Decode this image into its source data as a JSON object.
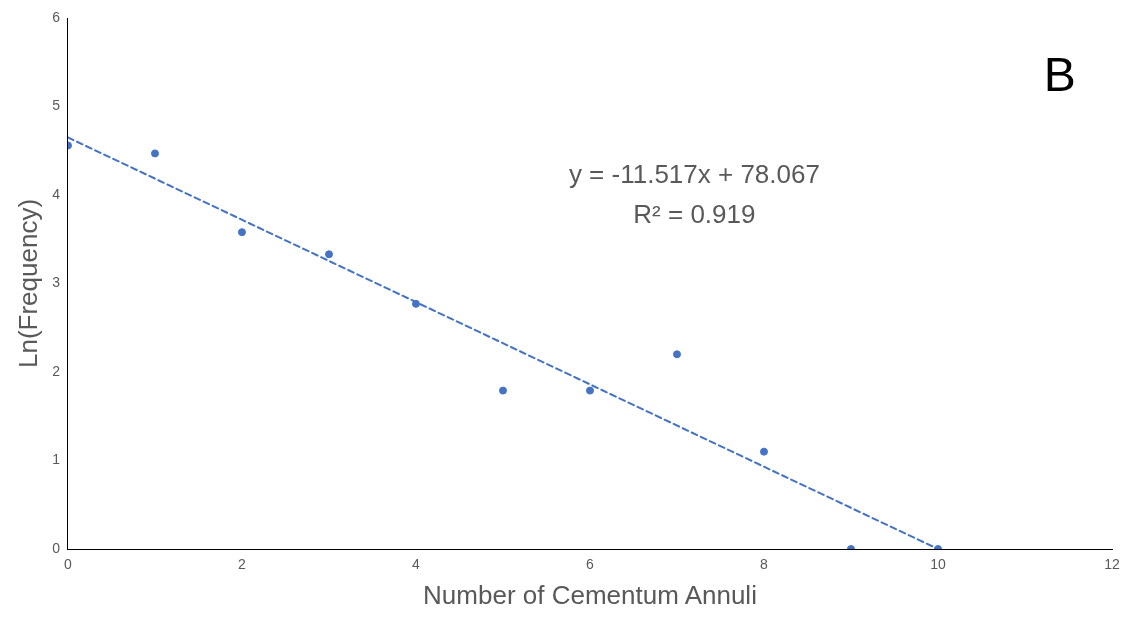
{
  "chart_data": {
    "type": "scatter",
    "xlabel": "Number of Cementum Annuli",
    "ylabel": "Ln(Frequency)",
    "xlim": [
      0,
      12
    ],
    "xticks": [
      0,
      2,
      4,
      6,
      8,
      10,
      12
    ],
    "ylim": [
      0,
      6
    ],
    "yticks": [
      0,
      1,
      2,
      3,
      4,
      5,
      6
    ],
    "grid": false,
    "legend": false,
    "marker": "circle",
    "annotations": [
      "B",
      "y = -11.517x + 78.067",
      "R² = 0.919"
    ],
    "series": [
      {
        "color": "#4472c4",
        "x": [
          0,
          1,
          2,
          3,
          4,
          5,
          6,
          7,
          8,
          9,
          10
        ],
        "values": [
          4.56,
          4.47,
          3.58,
          3.33,
          2.77,
          1.79,
          1.79,
          2.2,
          1.1,
          0,
          0
        ]
      },
      {
        "type": "line",
        "color": "#4472c4",
        "line_style": "dashed",
        "marker": "none",
        "x": [
          0,
          10
        ],
        "values": [
          4.65,
          0
        ]
      }
    ]
  }
}
